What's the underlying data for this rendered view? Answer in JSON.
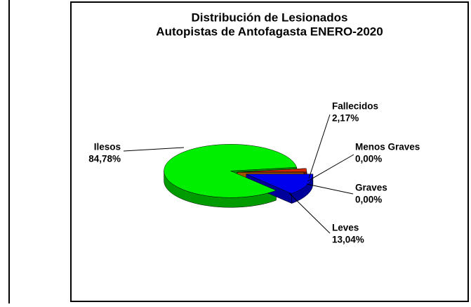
{
  "chart_data": {
    "type": "pie",
    "title": "Distribución de Lesionados",
    "subtitle": "Autopistas de Antofagasta ENERO-2020",
    "categories": [
      "Ilesos",
      "Fallecidos",
      "Menos Graves",
      "Graves",
      "Leves"
    ],
    "values": [
      84.78,
      2.17,
      0.0,
      0.0,
      13.04
    ],
    "value_labels": [
      "84,78%",
      "2,17%",
      "0,00%",
      "0,00%",
      "13,04%"
    ],
    "colors": [
      "#00ee00",
      "#d42a00",
      "#e0c000",
      "#ff8000",
      "#0000ee"
    ]
  }
}
